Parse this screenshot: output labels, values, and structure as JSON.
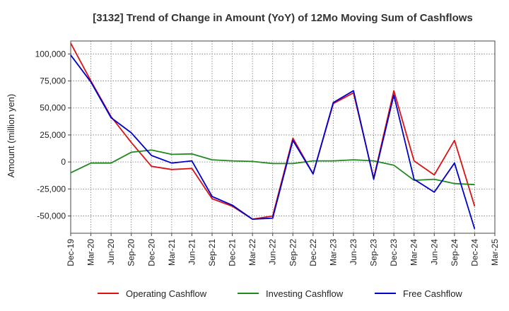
{
  "chart_data": {
    "type": "line",
    "title": "[3132]  Trend of Change in Amount (YoY) of 12Mo Moving Sum of Cashflows",
    "xlabel": "",
    "ylabel": "Amount (million yen)",
    "ylim": [
      -66000,
      112000
    ],
    "yticks": [
      100000,
      75000,
      50000,
      25000,
      0,
      -25000,
      -50000
    ],
    "ytick_labels": [
      "100,000",
      "75,000",
      "50,000",
      "25,000",
      "0",
      "-25,000",
      "-50,000"
    ],
    "x_tick_labels": [
      "Dec-19",
      "Mar-20",
      "Jun-20",
      "Sep-20",
      "Dec-20",
      "Mar-21",
      "Jun-21",
      "Sep-21",
      "Dec-21",
      "Mar-22",
      "Jun-22",
      "Sep-22",
      "Dec-22",
      "Mar-23",
      "Jun-23",
      "Sep-23",
      "Dec-23",
      "Mar-24",
      "Jun-24",
      "Sep-24",
      "Dec-24",
      "Mar-25"
    ],
    "x": [
      "Dec-19",
      "Mar-20",
      "Jun-20",
      "Sep-20",
      "Dec-20",
      "Mar-21",
      "Jun-21",
      "Sep-21",
      "Dec-21",
      "Mar-22",
      "Jun-22",
      "Sep-22",
      "Dec-22",
      "Mar-23",
      "Jun-23",
      "Sep-23",
      "Dec-23",
      "Mar-24",
      "Jun-24",
      "Sep-24",
      "Dec-24"
    ],
    "grid": true,
    "legend_position": "bottom",
    "series": [
      {
        "name": "Operating Cashflow",
        "color": "#dd1111",
        "values": [
          110000,
          75000,
          42000,
          18000,
          -4000,
          -7000,
          -6000,
          -34000,
          -41000,
          -53000,
          -50000,
          22000,
          -11000,
          54000,
          64000,
          -15000,
          66000,
          1000,
          -12000,
          20000,
          -41000
        ]
      },
      {
        "name": "Investing Cashflow",
        "color": "#228822",
        "values": [
          -10000,
          -1000,
          -1000,
          9000,
          11000,
          7000,
          7500,
          2000,
          1000,
          500,
          -1500,
          -1500,
          1000,
          1000,
          2000,
          1000,
          -3000,
          -17000,
          -16000,
          -20000,
          -21000
        ]
      },
      {
        "name": "Free Cashflow",
        "color": "#0000cc",
        "values": [
          99000,
          74000,
          41000,
          27000,
          6000,
          -1000,
          1000,
          -32000,
          -40000,
          -53000,
          -52000,
          20000,
          -11000,
          55000,
          66000,
          -16000,
          62000,
          -16000,
          -28000,
          -1000,
          -62000
        ]
      }
    ]
  }
}
